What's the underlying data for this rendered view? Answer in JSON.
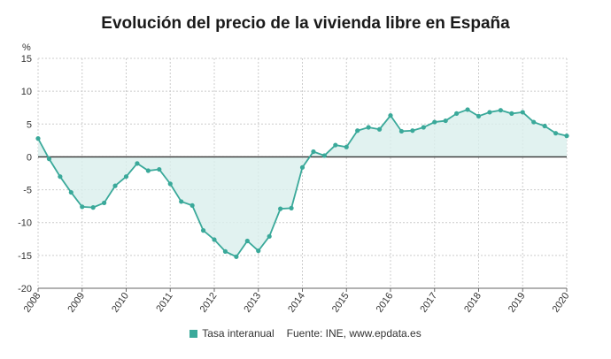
{
  "title": "Evolución del precio de la vivienda libre en España",
  "legend": {
    "series_label": "Tasa interanual",
    "source": "Fuente: INE, www.epdata.es"
  },
  "colors": {
    "line": "#3aa99a",
    "area": "#d9efec",
    "zero": "#333333",
    "grid": "#cccccc"
  },
  "chart_data": {
    "type": "area",
    "ylabel": "%",
    "ylim": [
      -20,
      15
    ],
    "yticks": [
      15,
      10,
      5,
      0,
      -5,
      -10,
      -15,
      -20
    ],
    "xlim": [
      2008,
      2020
    ],
    "xticks": [
      "2008",
      "2009",
      "2010",
      "2011",
      "2012",
      "2013",
      "2014",
      "2015",
      "2016",
      "2017",
      "2018",
      "2019",
      "2020"
    ],
    "grid": true,
    "legend_position": "bottom",
    "series": [
      {
        "name": "Tasa interanual",
        "x": [
          2008.0,
          2008.25,
          2008.5,
          2008.75,
          2009.0,
          2009.25,
          2009.5,
          2009.75,
          2010.0,
          2010.25,
          2010.5,
          2010.75,
          2011.0,
          2011.25,
          2011.5,
          2011.75,
          2012.0,
          2012.25,
          2012.5,
          2012.75,
          2013.0,
          2013.25,
          2013.5,
          2013.75,
          2014.0,
          2014.25,
          2014.5,
          2014.75,
          2015.0,
          2015.25,
          2015.5,
          2015.75,
          2016.0,
          2016.25,
          2016.5,
          2016.75,
          2017.0,
          2017.25,
          2017.5,
          2017.75,
          2018.0,
          2018.25,
          2018.5,
          2018.75,
          2019.0,
          2019.25,
          2019.5,
          2019.75,
          2020.0
        ],
        "values": [
          2.8,
          -0.3,
          -3.0,
          -5.4,
          -7.6,
          -7.7,
          -7.0,
          -4.4,
          -3.0,
          -1.0,
          -2.1,
          -1.9,
          -4.1,
          -6.8,
          -7.4,
          -11.2,
          -12.6,
          -14.4,
          -15.2,
          -12.8,
          -14.3,
          -12.1,
          -7.9,
          -7.8,
          -1.6,
          0.8,
          0.2,
          1.8,
          1.5,
          4.0,
          4.5,
          4.2,
          6.3,
          3.9,
          4.0,
          4.5,
          5.3,
          5.5,
          6.6,
          7.2,
          6.2,
          6.8,
          7.1,
          6.6,
          6.8,
          5.3,
          4.7,
          3.6,
          3.2
        ]
      }
    ]
  }
}
